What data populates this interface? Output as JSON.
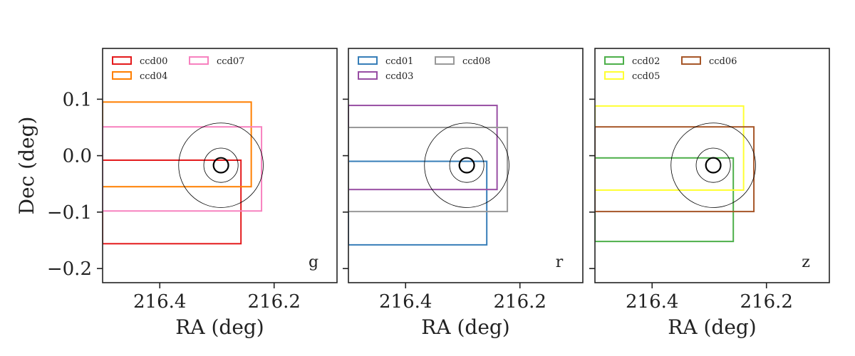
{
  "chart_data": [
    {
      "type": "line",
      "band_label": "g",
      "xlabel": "RA (deg)",
      "ylabel": "Dec (deg)",
      "xlim": [
        216.5,
        216.09
      ],
      "ylim": [
        -0.225,
        0.19
      ],
      "xticks": [
        216.4,
        216.2
      ],
      "xtick_labels": [
        "216.4",
        "216.2"
      ],
      "yticks": [
        0.1,
        0.0,
        -0.1,
        -0.2
      ],
      "ytick_labels": [
        "0.1",
        "0.0",
        "−0.1",
        "−0.2"
      ],
      "legend_position": "top-left",
      "series": [
        {
          "name": "ccd00",
          "color": "#e41a1c",
          "ra": [
            216.5,
            216.258
          ],
          "dec": [
            -0.156,
            -0.008
          ]
        },
        {
          "name": "ccd04",
          "color": "#ff7f00",
          "ra": [
            216.5,
            216.24
          ],
          "dec": [
            -0.055,
            0.095
          ]
        },
        {
          "name": "ccd07",
          "color": "#f781bf",
          "ra": [
            216.5,
            216.222
          ],
          "dec": [
            -0.098,
            0.051
          ]
        }
      ],
      "circles": [
        {
          "ra": 216.293,
          "dec": -0.017,
          "radius": 0.074,
          "lw": 0.8
        },
        {
          "ra": 216.293,
          "dec": -0.017,
          "radius": 0.03,
          "lw": 0.8
        },
        {
          "ra": 216.293,
          "dec": -0.017,
          "radius": 0.013,
          "lw": 2.2
        }
      ]
    },
    {
      "type": "line",
      "band_label": "r",
      "xlabel": "RA (deg)",
      "ylabel": "",
      "xlim": [
        216.5,
        216.09
      ],
      "ylim": [
        -0.225,
        0.19
      ],
      "xticks": [
        216.4,
        216.2
      ],
      "xtick_labels": [
        "216.4",
        "216.2"
      ],
      "yticks": [
        0.1,
        0.0,
        -0.1,
        -0.2
      ],
      "ytick_labels": [
        "",
        "",
        "",
        ""
      ],
      "legend_position": "top-left",
      "series": [
        {
          "name": "ccd01",
          "color": "#377eb8",
          "ra": [
            216.5,
            216.258
          ],
          "dec": [
            -0.158,
            -0.01
          ]
        },
        {
          "name": "ccd03",
          "color": "#984ea3",
          "ra": [
            216.5,
            216.24
          ],
          "dec": [
            -0.06,
            0.089
          ]
        },
        {
          "name": "ccd08",
          "color": "#999999",
          "ra": [
            216.5,
            216.222
          ],
          "dec": [
            -0.099,
            0.05
          ]
        }
      ],
      "circles": [
        {
          "ra": 216.293,
          "dec": -0.017,
          "radius": 0.074,
          "lw": 0.8
        },
        {
          "ra": 216.293,
          "dec": -0.017,
          "radius": 0.03,
          "lw": 0.8
        },
        {
          "ra": 216.293,
          "dec": -0.017,
          "radius": 0.013,
          "lw": 2.2
        }
      ]
    },
    {
      "type": "line",
      "band_label": "z",
      "xlabel": "RA (deg)",
      "ylabel": "",
      "xlim": [
        216.5,
        216.09
      ],
      "ylim": [
        -0.225,
        0.19
      ],
      "xticks": [
        216.4,
        216.2
      ],
      "xtick_labels": [
        "216.4",
        "216.2"
      ],
      "yticks": [
        0.1,
        0.0,
        -0.1,
        -0.2
      ],
      "ytick_labels": [
        "",
        "",
        "",
        ""
      ],
      "legend_position": "top-left",
      "series": [
        {
          "name": "ccd02",
          "color": "#4daf4a",
          "ra": [
            216.5,
            216.258
          ],
          "dec": [
            -0.152,
            -0.004
          ]
        },
        {
          "name": "ccd05",
          "color": "#ffff33",
          "ra": [
            216.5,
            216.24
          ],
          "dec": [
            -0.061,
            0.088
          ]
        },
        {
          "name": "ccd06",
          "color": "#a65628",
          "ra": [
            216.5,
            216.222
          ],
          "dec": [
            -0.099,
            0.051
          ]
        }
      ],
      "circles": [
        {
          "ra": 216.293,
          "dec": -0.017,
          "radius": 0.074,
          "lw": 0.8
        },
        {
          "ra": 216.293,
          "dec": -0.017,
          "radius": 0.03,
          "lw": 0.8
        },
        {
          "ra": 216.293,
          "dec": -0.017,
          "radius": 0.013,
          "lw": 2.2
        }
      ]
    }
  ]
}
